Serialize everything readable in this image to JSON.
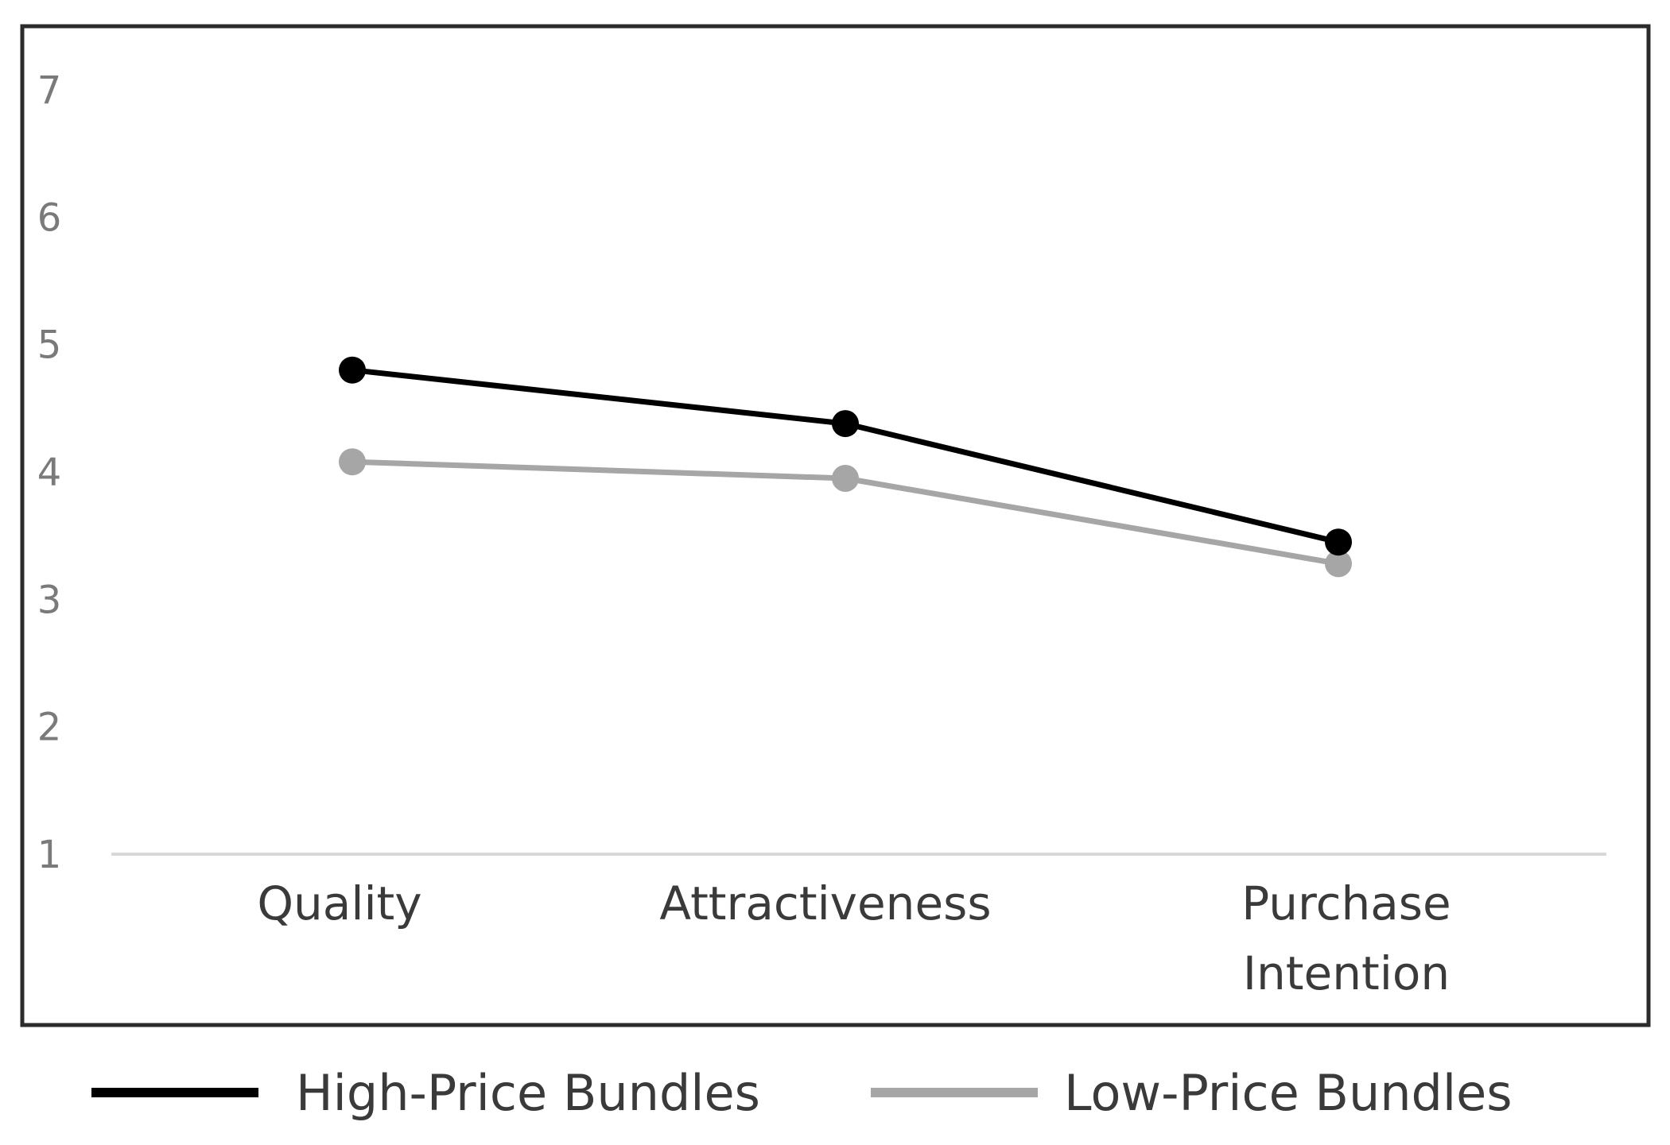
{
  "chart_data": {
    "type": "line",
    "categories": [
      "Quality",
      "Attractiveness",
      "Purchase Intention"
    ],
    "category_lines": [
      [
        "Quality"
      ],
      [
        "Attractiveness"
      ],
      [
        "Purchase",
        "Intention"
      ]
    ],
    "series": [
      {
        "name": "High-Price Bundles",
        "values": [
          4.8,
          4.38,
          3.45
        ],
        "color": "#000000"
      },
      {
        "name": "Low-Price Bundles",
        "values": [
          4.08,
          3.95,
          3.28
        ],
        "color": "#a6a6a6"
      }
    ],
    "y_ticks": [
      "1",
      "2",
      "3",
      "4",
      "5",
      "6",
      "7"
    ],
    "ylim": [
      1,
      7
    ],
    "title": "",
    "xlabel": "",
    "ylabel": "",
    "grid": false,
    "legend_position": "bottom"
  }
}
